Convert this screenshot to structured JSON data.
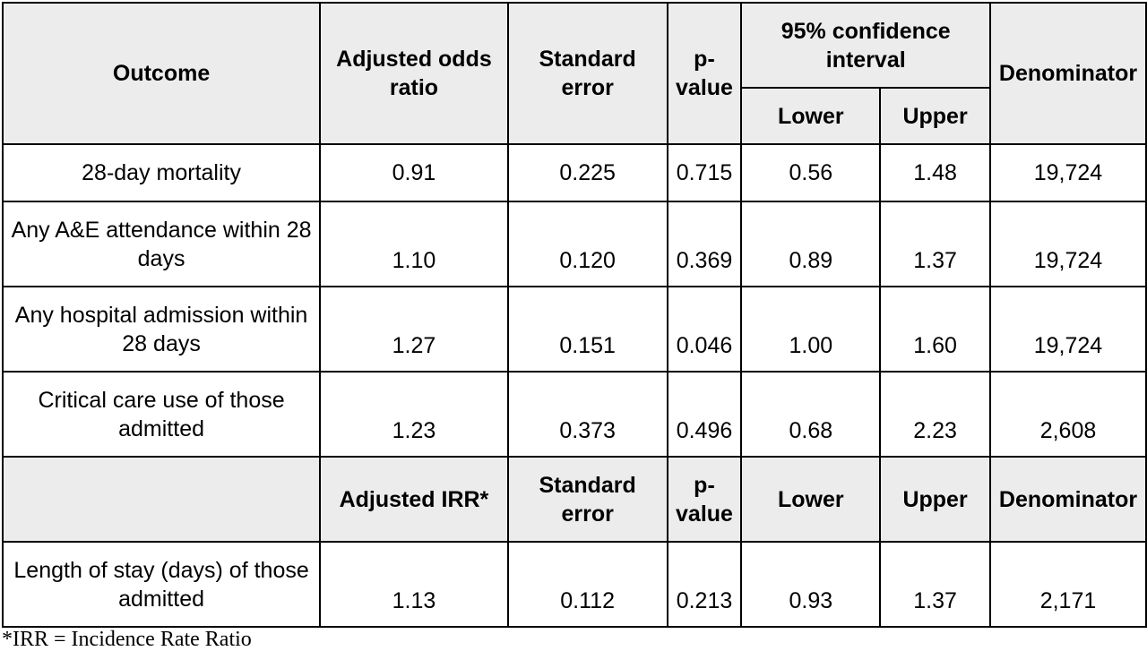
{
  "header1": {
    "outcome": "Outcome",
    "estimate": "Adjusted odds ratio",
    "std_error": "Standard error",
    "p_value": "p-value",
    "ci": "95% confidence interval",
    "lower": "Lower",
    "upper": "Upper",
    "denominator": "Denominator"
  },
  "rows_or": [
    {
      "outcome": "28-day mortality",
      "estimate": "0.91",
      "se": "0.225",
      "p": "0.715",
      "lower": "0.56",
      "upper": "1.48",
      "denom": "19,724"
    },
    {
      "outcome": "Any A&E attendance within 28 days",
      "estimate": "1.10",
      "se": "0.120",
      "p": "0.369",
      "lower": "0.89",
      "upper": "1.37",
      "denom": "19,724"
    },
    {
      "outcome": "Any hospital admission within 28 days",
      "estimate": "1.27",
      "se": "0.151",
      "p": "0.046",
      "lower": "1.00",
      "upper": "1.60",
      "denom": "19,724"
    },
    {
      "outcome": "Critical care use of those admitted",
      "estimate": "1.23",
      "se": "0.373",
      "p": "0.496",
      "lower": "0.68",
      "upper": "2.23",
      "denom": "2,608"
    }
  ],
  "header2": {
    "outcome": "",
    "estimate": "Adjusted IRR*",
    "std_error": "Standard error",
    "p_value": "p-value",
    "lower": "Lower",
    "upper": "Upper",
    "denominator": "Denominator"
  },
  "rows_irr": [
    {
      "outcome": "Length of stay (days) of those admitted",
      "estimate": "1.13",
      "se": "0.112",
      "p": "0.213",
      "lower": "0.93",
      "upper": "1.37",
      "denom": "2,171"
    }
  ],
  "footnote": "*IRR = Incidence Rate Ratio"
}
